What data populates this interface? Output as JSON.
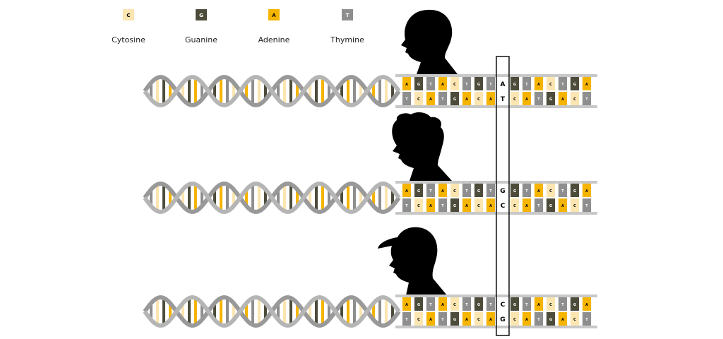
{
  "legend": [
    {
      "letter": "C",
      "name": "Cytosine",
      "color": "#fbe5b0"
    },
    {
      "letter": "G",
      "name": "Guanine",
      "color": "#4d4c3a"
    },
    {
      "letter": "A",
      "name": "Adenine",
      "color": "#f5b400"
    },
    {
      "letter": "T",
      "name": "Thymine",
      "color": "#8e8e8e"
    }
  ],
  "rows": [
    {
      "top": [
        "A",
        "G",
        "T",
        "A",
        "C",
        "T",
        "G",
        "T",
        "A",
        "G",
        "T",
        "A",
        "C",
        "T",
        "G",
        "A"
      ],
      "bottom": [
        "T",
        "C",
        "A",
        "T",
        "G",
        "A",
        "C",
        "A",
        "T",
        "C",
        "A",
        "T",
        "G",
        "A",
        "C",
        "T"
      ]
    },
    {
      "top": [
        "A",
        "G",
        "T",
        "A",
        "C",
        "T",
        "G",
        "T",
        "G",
        "G",
        "T",
        "A",
        "C",
        "T",
        "G",
        "A"
      ],
      "bottom": [
        "T",
        "C",
        "A",
        "T",
        "G",
        "A",
        "C",
        "A",
        "C",
        "C",
        "A",
        "T",
        "G",
        "A",
        "C",
        "T"
      ]
    },
    {
      "top": [
        "A",
        "G",
        "T",
        "A",
        "C",
        "T",
        "G",
        "T",
        "C",
        "G",
        "T",
        "A",
        "C",
        "T",
        "G",
        "A"
      ],
      "bottom": [
        "T",
        "C",
        "A",
        "T",
        "G",
        "A",
        "C",
        "A",
        "G",
        "C",
        "A",
        "T",
        "G",
        "A",
        "C",
        "T"
      ]
    }
  ]
}
